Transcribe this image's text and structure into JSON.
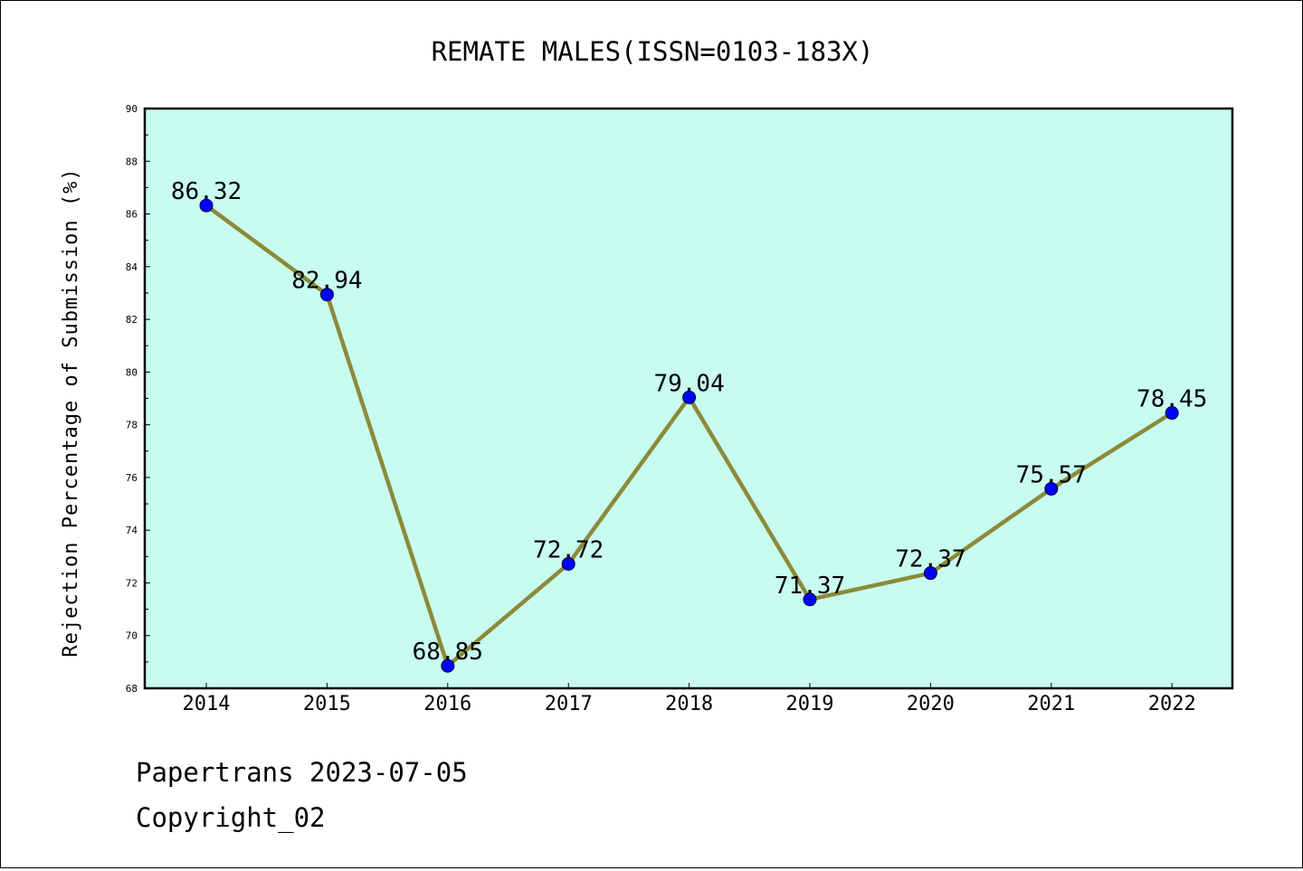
{
  "chart_data": {
    "type": "line",
    "title": "REMATE MALES(ISSN=0103-183X)",
    "xlabel": "",
    "ylabel": "Rejection Percentage of Submission (%)",
    "categories": [
      "2014",
      "2015",
      "2016",
      "2017",
      "2018",
      "2019",
      "2020",
      "2021",
      "2022"
    ],
    "series": [
      {
        "values": [
          86.32,
          82.94,
          68.85,
          72.72,
          79.04,
          71.37,
          72.37,
          75.57,
          78.45
        ],
        "labels": [
          "86.32",
          "82.94",
          "68.85",
          "72.72",
          "79.04",
          "71.37",
          "72.37",
          "75.57",
          "78.45"
        ]
      }
    ],
    "ylim": [
      68,
      90
    ],
    "yticks": [
      "68",
      "70",
      "72",
      "74",
      "76",
      "78",
      "80",
      "82",
      "84",
      "86",
      "88",
      "90"
    ],
    "grid": false,
    "legend": "none",
    "colors": {
      "plot_background": "#c8fcee",
      "line": "#8b8a3a",
      "marker": "#0000ff"
    }
  },
  "footer": {
    "line1": "Papertrans 2023-07-05",
    "line2": "Copyright_02"
  }
}
